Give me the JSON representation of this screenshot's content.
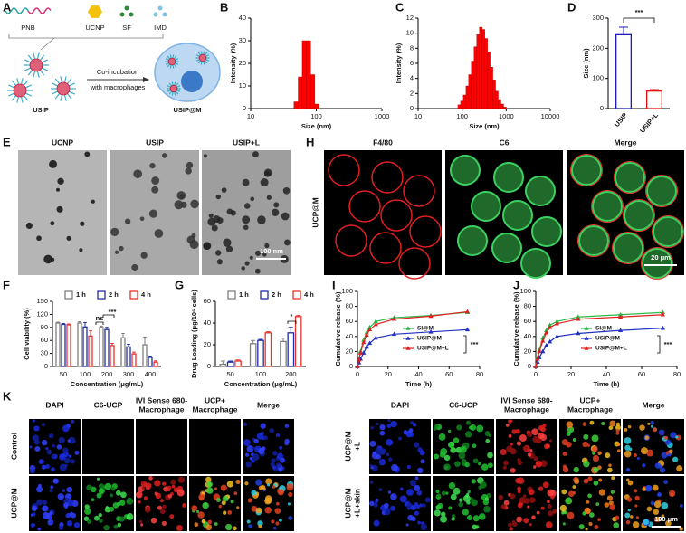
{
  "schematic": {
    "panel": "A",
    "components": [
      "PNB",
      "UCNP",
      "SF",
      "IMD"
    ],
    "arrow_label": [
      "Co-incubation",
      "with macrophages"
    ],
    "products": [
      "USIP",
      "USIP@M"
    ]
  },
  "tem": {
    "panel": "E",
    "headers": [
      "UCNP",
      "USIP",
      "USIP+L"
    ],
    "scale_bar": "100 nm"
  },
  "confocal": {
    "panel": "H",
    "headers": [
      "F4/80",
      "C6",
      "Merge"
    ],
    "row_label": "UCP@M",
    "scale_bar": "20 μm"
  },
  "imaging": {
    "panel": "K",
    "left": {
      "headers": [
        [
          "DAPI"
        ],
        [
          "C6-UCP"
        ],
        [
          "IVI Sense 680-",
          "Macrophage"
        ],
        [
          "UCP+",
          "Macrophage"
        ],
        [
          "Merge"
        ]
      ],
      "rows": [
        [
          "Control"
        ],
        [
          "UCP@M"
        ]
      ]
    },
    "right": {
      "headers": [
        [
          "DAPI"
        ],
        [
          "C6-UCP"
        ],
        [
          "IVI Sense 680-",
          "Macrophage"
        ],
        [
          "UCP+",
          "Macrophage"
        ],
        [
          "Merge"
        ]
      ],
      "rows": [
        [
          "UCP@M",
          "+L"
        ],
        [
          "UCP@M",
          "+L+skin"
        ]
      ]
    },
    "scale_bar": "100 μm"
  },
  "chart_data": [
    {
      "panel": "B",
      "type": "histogram",
      "ylabel": "Intensity (%)",
      "xlabel": "Size (nm)",
      "xscale": "log",
      "xlim": [
        10,
        1000
      ],
      "xticks": [
        10,
        100,
        1000
      ],
      "ylim": [
        0,
        40
      ],
      "yticks": [
        0,
        10,
        20,
        30,
        40
      ],
      "color": "#ff0000",
      "bins": [
        45.7,
        53,
        61,
        71,
        82,
        95,
        110
      ],
      "values": [
        3,
        14,
        30,
        30,
        15,
        2
      ]
    },
    {
      "panel": "C",
      "type": "histogram",
      "ylabel": "Intensity (%)",
      "xlabel": "Size (nm)",
      "xscale": "log",
      "xlim": [
        10,
        10000
      ],
      "xticks": [
        10,
        100,
        1000,
        10000
      ],
      "ylim": [
        0,
        12
      ],
      "yticks": [
        0,
        2,
        4,
        6,
        8,
        10,
        12
      ],
      "color": "#ff0000",
      "bins": [
        80,
        92.1,
        106,
        122,
        140.4,
        161.6,
        186,
        214.1,
        246.4,
        283.6,
        326.4,
        375.7,
        432.4,
        497.7,
        572.8,
        659.3,
        758.8,
        873.4,
        1005
      ],
      "values": [
        0.5,
        1,
        1.8,
        3,
        4.5,
        6.3,
        8.2,
        9.8,
        10.8,
        10.5,
        9.3,
        7.5,
        5.5,
        3.8,
        2.3,
        1.2,
        0.6,
        0.2
      ]
    },
    {
      "panel": "D",
      "type": "bar",
      "ylabel": "Size (nm)",
      "categories": [
        "USIP",
        "USIP+L"
      ],
      "values": [
        245,
        58
      ],
      "errors": [
        25,
        5
      ],
      "colors": [
        "#1a1ab8",
        "#e01010"
      ],
      "ylim": [
        0,
        300
      ],
      "yticks": [
        0,
        100,
        200,
        300
      ],
      "annotations": [
        "***"
      ]
    },
    {
      "panel": "F",
      "type": "bar",
      "ylabel": "Cell viability (%)",
      "xlabel": "Concentration (μg/mL)",
      "categories": [
        "50",
        "100",
        "200",
        "300",
        "400"
      ],
      "ylim": [
        0,
        150
      ],
      "yticks": [
        0,
        30,
        60,
        90,
        120,
        150
      ],
      "series": [
        {
          "name": "1 h",
          "color": "#7f7f7f",
          "values": [
            100,
            100,
            90,
            66,
            50
          ],
          "errors": [
            2,
            3,
            3,
            10,
            18
          ]
        },
        {
          "name": "2 h",
          "color": "#1f2fa8",
          "values": [
            97,
            91,
            85,
            45,
            21
          ],
          "errors": [
            2,
            10,
            5,
            6,
            3
          ]
        },
        {
          "name": "4 h",
          "color": "#e8322b",
          "values": [
            96,
            70,
            48,
            29,
            10
          ],
          "errors": [
            2,
            12,
            5,
            4,
            3
          ]
        }
      ],
      "annotations": [
        "ns",
        "***"
      ]
    },
    {
      "panel": "G",
      "type": "bar",
      "ylabel": "Drug Loading (μg/10⁶ cells)",
      "xlabel": "Concentration (μg/mL)",
      "categories": [
        "50",
        "100",
        "200"
      ],
      "ylim": [
        0,
        60
      ],
      "yticks": [
        0,
        20,
        40,
        60
      ],
      "series": [
        {
          "name": "1 h",
          "color": "#7f7f7f",
          "values": [
            2,
            21,
            23
          ],
          "errors": [
            3,
            3,
            3
          ]
        },
        {
          "name": "2 h",
          "color": "#1f2fa8",
          "values": [
            4,
            24,
            31
          ],
          "errors": [
            1,
            1,
            5
          ]
        },
        {
          "name": "4 h",
          "color": "#e8322b",
          "values": [
            5,
            31,
            46
          ],
          "errors": [
            1,
            1,
            1
          ]
        }
      ],
      "annotations": [
        "*"
      ]
    },
    {
      "panel": "I",
      "type": "line",
      "ylabel": "Cumulative release (%)",
      "xlabel": "Time (h)",
      "xlim": [
        0,
        80
      ],
      "xticks": [
        0,
        20,
        40,
        60,
        80
      ],
      "ylim": [
        0,
        100
      ],
      "yticks": [
        0,
        20,
        40,
        60,
        80,
        100
      ],
      "x": [
        0,
        1,
        2,
        4,
        6,
        8,
        12,
        24,
        48,
        72
      ],
      "series": [
        {
          "name": "SI@M",
          "color": "#2db84a",
          "values": [
            0,
            10,
            20,
            35,
            45,
            52,
            60,
            65,
            68,
            72
          ]
        },
        {
          "name": "USIP@M",
          "color": "#2030c0",
          "values": [
            0,
            5,
            10,
            18,
            26,
            31,
            38,
            43,
            46,
            49
          ]
        },
        {
          "name": "USIP@M+L",
          "color": "#e02020",
          "values": [
            0,
            9,
            18,
            32,
            42,
            49,
            56,
            63,
            67,
            73
          ]
        }
      ],
      "annotations": [
        "***"
      ]
    },
    {
      "panel": "J",
      "type": "line",
      "ylabel": "Cumulative release (%)",
      "xlabel": "Time (h)",
      "xlim": [
        0,
        80
      ],
      "xticks": [
        0,
        20,
        40,
        60,
        80
      ],
      "ylim": [
        0,
        100
      ],
      "yticks": [
        0,
        20,
        40,
        60,
        80,
        100
      ],
      "x": [
        0,
        1,
        2,
        4,
        6,
        8,
        12,
        24,
        48,
        72
      ],
      "series": [
        {
          "name": "SI@M",
          "color": "#2db84a",
          "values": [
            0,
            12,
            22,
            38,
            48,
            55,
            60,
            66,
            69,
            72
          ]
        },
        {
          "name": "USIP@M",
          "color": "#2030c0",
          "values": [
            0,
            6,
            12,
            20,
            28,
            33,
            40,
            44,
            48,
            51
          ]
        },
        {
          "name": "USIP@M+L",
          "color": "#e02020",
          "values": [
            0,
            10,
            20,
            34,
            45,
            52,
            57,
            63,
            66,
            69
          ]
        }
      ],
      "annotations": [
        "***"
      ]
    }
  ]
}
